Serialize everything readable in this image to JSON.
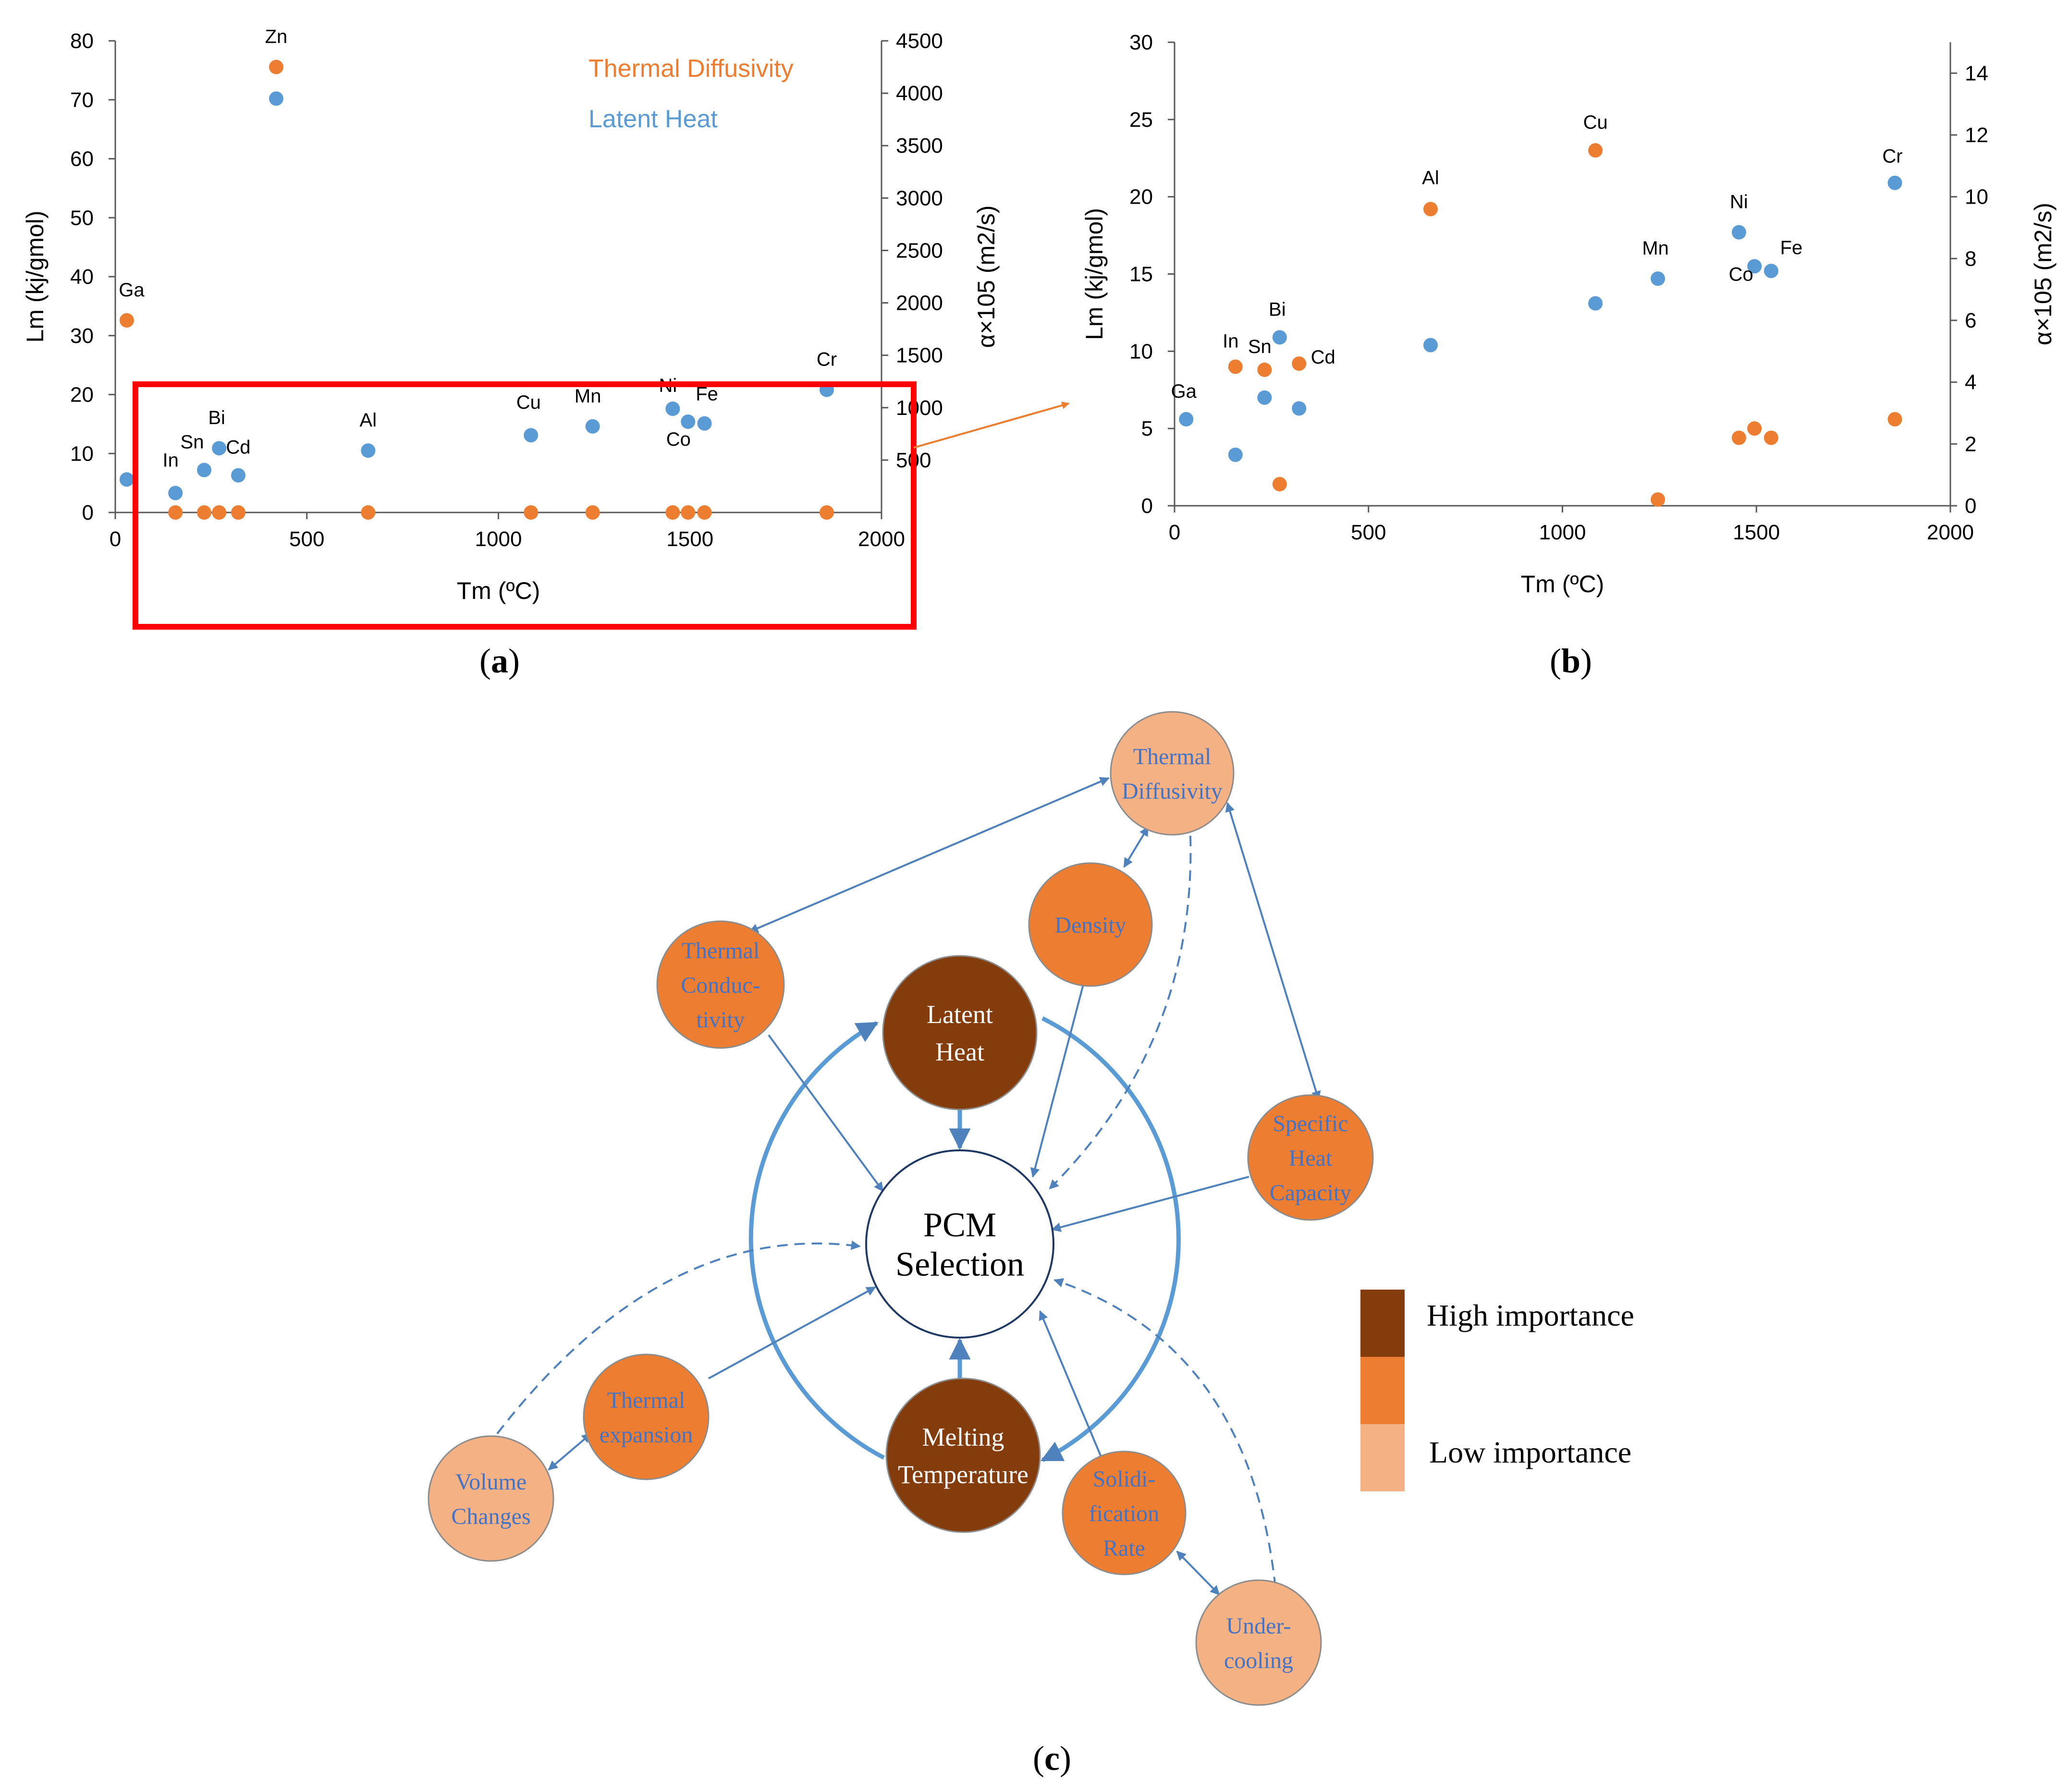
{
  "colors": {
    "orange": "#ED7D31",
    "blue": "#5B9BD5",
    "axis": "#595959",
    "high": "#843C0C",
    "medium": "#ED7D31",
    "low": "#F4B183",
    "highlight": "#FF0000",
    "arrow": "#4F81BD"
  },
  "panels": {
    "a": {
      "label": "(a)",
      "label_letter": "a"
    },
    "b": {
      "label": "(b)",
      "label_letter": "b"
    },
    "c": {
      "label": "(c)",
      "label_letter": "c"
    }
  },
  "chart_data": [
    {
      "id": "a",
      "type": "scatter",
      "xlabel": "Tm (ºC)",
      "ylabel_left": "Lm (kj/gmol)",
      "ylabel_right": "α×105 (m2/s)",
      "xlim": [
        0,
        2000
      ],
      "ylim_left": [
        0,
        80
      ],
      "ylim_right": [
        0,
        4500
      ],
      "xticks": [
        0,
        500,
        1000,
        1500,
        2000
      ],
      "yticks_left": [
        0,
        10,
        20,
        30,
        40,
        50,
        60,
        70,
        80
      ],
      "yticks_right": [
        500,
        1000,
        1500,
        2000,
        2500,
        3000,
        3500,
        4000,
        4500
      ],
      "grid": false,
      "legend_position": "top-right",
      "series": [
        {
          "name": "Thermal Diffusivity",
          "axis": "right",
          "color": "#ED7D31",
          "points": [
            {
              "label": "Ga",
              "x": 30,
              "y": 1833
            },
            {
              "label": "Zn",
              "x": 420,
              "y": 4250
            },
            {
              "label": "",
              "x": 157,
              "y": 0
            },
            {
              "label": "",
              "x": 232,
              "y": 0
            },
            {
              "label": "",
              "x": 271,
              "y": 0
            },
            {
              "label": "",
              "x": 321,
              "y": 0
            },
            {
              "label": "",
              "x": 660,
              "y": 0
            },
            {
              "label": "",
              "x": 1085,
              "y": 0
            },
            {
              "label": "",
              "x": 1246,
              "y": 0
            },
            {
              "label": "",
              "x": 1455,
              "y": 0
            },
            {
              "label": "",
              "x": 1495,
              "y": 0
            },
            {
              "label": "",
              "x": 1538,
              "y": 0
            },
            {
              "label": "",
              "x": 1857,
              "y": 0
            }
          ]
        },
        {
          "name": "Latent Heat",
          "axis": "left",
          "color": "#5B9BD5",
          "points": [
            {
              "label": "",
              "x": 30,
              "y": 5.6
            },
            {
              "label": "In",
              "x": 157,
              "y": 3.3
            },
            {
              "label": "Sn",
              "x": 232,
              "y": 7.2
            },
            {
              "label": "Bi",
              "x": 271,
              "y": 10.9
            },
            {
              "label": "Cd",
              "x": 321,
              "y": 6.3
            },
            {
              "label": "",
              "x": 420,
              "y": 70.2
            },
            {
              "label": "Al",
              "x": 660,
              "y": 10.5
            },
            {
              "label": "Cu",
              "x": 1085,
              "y": 13.1
            },
            {
              "label": "Mn",
              "x": 1246,
              "y": 14.6
            },
            {
              "label": "Ni",
              "x": 1455,
              "y": 17.6
            },
            {
              "label": "Co",
              "x": 1495,
              "y": 15.4
            },
            {
              "label": "Fe",
              "x": 1538,
              "y": 15.1
            },
            {
              "label": "Cr",
              "x": 1857,
              "y": 20.8
            }
          ]
        }
      ]
    },
    {
      "id": "b",
      "type": "scatter",
      "xlabel": "Tm (ºC)",
      "ylabel_left": "Lm (kj/gmol)",
      "ylabel_right": "α×105 (m2/s)",
      "xlim": [
        0,
        2000
      ],
      "ylim_left": [
        0,
        30
      ],
      "ylim_right": [
        0,
        15
      ],
      "xticks": [
        0,
        500,
        1000,
        1500,
        2000
      ],
      "yticks_left": [
        0,
        5,
        10,
        15,
        20,
        25,
        30
      ],
      "yticks_right": [
        0,
        2,
        4,
        6,
        8,
        10,
        12,
        14
      ],
      "grid": false,
      "series": [
        {
          "name": "Thermal Diffusivity",
          "axis": "right",
          "color": "#ED7D31",
          "points": [
            {
              "label": "In",
              "x": 157,
              "y": 4.5
            },
            {
              "label": "Sn",
              "x": 232,
              "y": 4.4
            },
            {
              "label": "Cd",
              "x": 321,
              "y": 4.6
            },
            {
              "label": "",
              "x": 271,
              "y": 0.7
            },
            {
              "label": "Al",
              "x": 660,
              "y": 9.6
            },
            {
              "label": "Cu",
              "x": 1085,
              "y": 11.5
            },
            {
              "label": "",
              "x": 1246,
              "y": 0.2
            },
            {
              "label": "",
              "x": 1455,
              "y": 2.2
            },
            {
              "label": "",
              "x": 1495,
              "y": 2.5
            },
            {
              "label": "",
              "x": 1538,
              "y": 2.2
            },
            {
              "label": "",
              "x": 1857,
              "y": 2.8
            }
          ]
        },
        {
          "name": "Latent Heat",
          "axis": "left",
          "color": "#5B9BD5",
          "points": [
            {
              "label": "Ga",
              "x": 30,
              "y": 5.6
            },
            {
              "label": "",
              "x": 157,
              "y": 3.3
            },
            {
              "label": "",
              "x": 232,
              "y": 7.0
            },
            {
              "label": "Bi",
              "x": 271,
              "y": 10.9
            },
            {
              "label": "",
              "x": 321,
              "y": 6.3
            },
            {
              "label": "",
              "x": 660,
              "y": 10.4
            },
            {
              "label": "",
              "x": 1085,
              "y": 13.1
            },
            {
              "label": "Mn",
              "x": 1246,
              "y": 14.7
            },
            {
              "label": "Ni",
              "x": 1455,
              "y": 17.7
            },
            {
              "label": "Co",
              "x": 1495,
              "y": 15.5
            },
            {
              "label": "Fe",
              "x": 1538,
              "y": 15.2
            },
            {
              "label": "Cr",
              "x": 1857,
              "y": 20.9
            }
          ]
        }
      ]
    }
  ],
  "diagram": {
    "nodes": {
      "center": {
        "lines": [
          "PCM",
          "Selection"
        ]
      },
      "latent_heat": {
        "lines": [
          "Latent",
          "Heat"
        ],
        "importance": "high"
      },
      "melting_temperature": {
        "lines": [
          "Melting",
          "Temperature"
        ],
        "importance": "high"
      },
      "thermal_diffusivity": {
        "lines": [
          "Thermal",
          "Diffusivity"
        ],
        "importance": "low"
      },
      "density": {
        "lines": [
          "Density"
        ],
        "importance": "medium"
      },
      "thermal_conductivity": {
        "lines": [
          "Thermal",
          "Conduc-",
          "tivity"
        ],
        "importance": "medium"
      },
      "specific_heat_capacity": {
        "lines": [
          "Specific",
          "Heat",
          "Capacity"
        ],
        "importance": "medium"
      },
      "thermal_expansion": {
        "lines": [
          "Thermal",
          "expansion"
        ],
        "importance": "medium"
      },
      "volume_changes": {
        "lines": [
          "Volume",
          "Changes"
        ],
        "importance": "low"
      },
      "solidification_rate": {
        "lines": [
          "Solidi-",
          "fication",
          "Rate"
        ],
        "importance": "medium"
      },
      "undercooling": {
        "lines": [
          "Under-",
          "cooling"
        ],
        "importance": "low"
      }
    },
    "legend": {
      "high": "High importance",
      "low": "Low importance"
    }
  }
}
